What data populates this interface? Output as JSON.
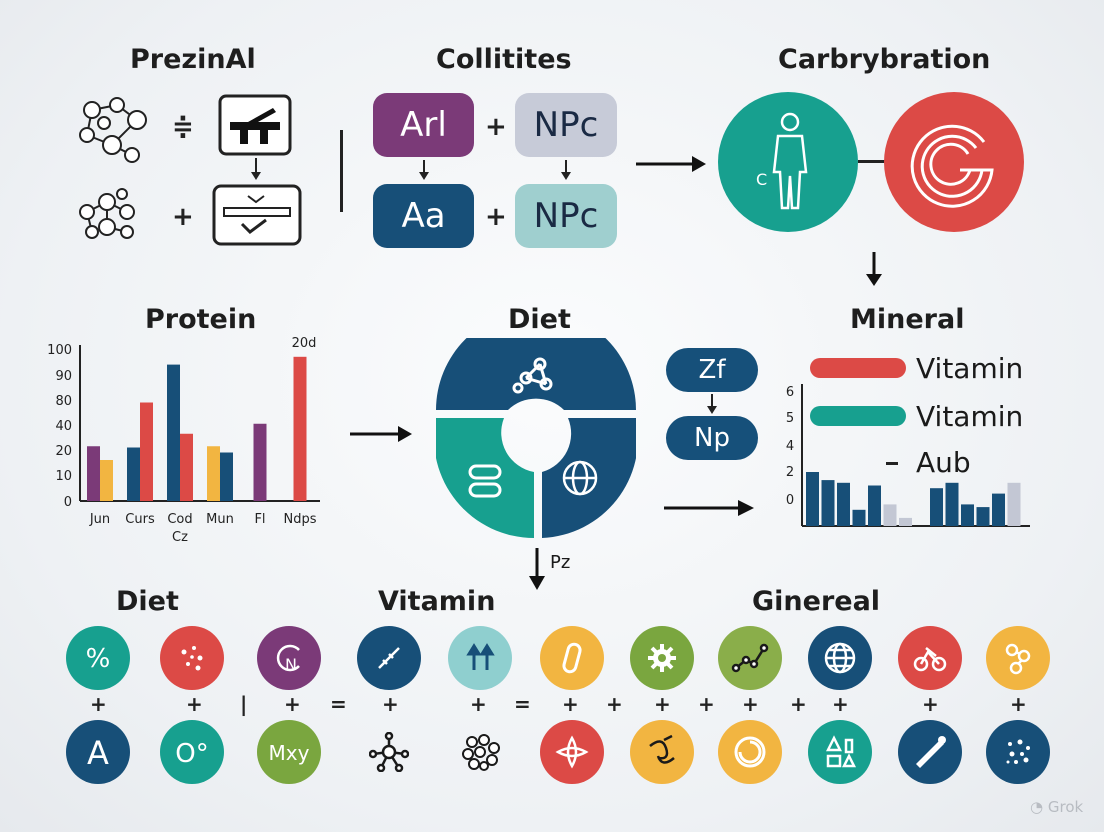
{
  "sections": {
    "prezinal": {
      "title": "PrezinAl",
      "op1": "≑",
      "op2": "+"
    },
    "collitites": {
      "title": "Collitites",
      "box1": "Arl",
      "box2": "NPc",
      "box3": "Aa",
      "box4": "NPc",
      "plus1": "+",
      "plus2": "+",
      "colors": {
        "box1": "#7b3a78",
        "box2": "#c7cbd8",
        "box3": "#174f78",
        "box4": "#9fcfcf"
      }
    },
    "carbrybration": {
      "title": "Carbrybration",
      "circle_label": "C",
      "colors": {
        "left": "#17a08f",
        "right": "#dc4a46"
      }
    },
    "protein": {
      "title": "Protein"
    },
    "diet_center": {
      "title": "Diet",
      "arrow_label": "Pz"
    },
    "mineral": {
      "title": "Mineral",
      "pill1": "Zf",
      "pill2": "Np",
      "legend": [
        {
          "label": "Vitamin",
          "color": "#dc4a46"
        },
        {
          "label": "Vitamin",
          "color": "#17a08f"
        },
        {
          "label": "Aub",
          "color": "#222222"
        }
      ],
      "y_ticks": [
        "6",
        "5",
        "4",
        "2",
        "0"
      ]
    },
    "bottom": {
      "diet": "Diet",
      "vitamin": "Vitamin",
      "general": "Ginereal"
    }
  },
  "chart_data": {
    "type": "bar",
    "title": "Protein",
    "categories": [
      "Jun",
      "Curs",
      "Cod",
      "Mun",
      "Fl",
      "Ndps"
    ],
    "category_sublabels": [
      "",
      "",
      "Cz",
      "",
      "",
      ""
    ],
    "annotation": "20d",
    "ylim": [
      0,
      100
    ],
    "y_ticks": [
      100,
      90,
      80,
      40,
      20,
      10,
      0
    ],
    "series": [
      {
        "color": "#7b3a78",
        "values": [
          23,
          0,
          0,
          0,
          42,
          0
        ]
      },
      {
        "color": "#f2b541",
        "values": [
          16,
          0,
          0,
          23,
          0,
          0
        ]
      },
      {
        "color": "#174f78",
        "values": [
          0,
          22,
          94,
          19,
          0,
          0
        ]
      },
      {
        "color": "#dc4a46",
        "values": [
          0,
          76,
          33,
          0,
          0,
          97
        ]
      }
    ]
  },
  "mini_chart": {
    "values": [
      2,
      1.7,
      1.6,
      0.6,
      1.5,
      0.8,
      0.3,
      0,
      1.4,
      1.6,
      0.8,
      0.7,
      1.2,
      1.6
    ],
    "colors": [
      "#174f78",
      "#174f78",
      "#174f78",
      "#174f78",
      "#174f78",
      "#c3c7d4",
      "#c3c7d4",
      "#174f78",
      "#174f78",
      "#174f78",
      "#174f78",
      "#174f78",
      "#174f78",
      "#c3c7d4"
    ]
  },
  "icons_row1": [
    {
      "name": "percent-icon",
      "color": "#17a08f",
      "text": "%"
    },
    {
      "name": "dots-icon",
      "color": "#dc4a46",
      "text": ""
    },
    {
      "name": "nc-icon",
      "color": "#7b3a78",
      "text": "N"
    },
    {
      "name": "syringe-icon",
      "color": "#174f78",
      "text": ""
    },
    {
      "name": "arrows-up-icon",
      "color": "#8fcfcf",
      "text": ""
    },
    {
      "name": "capsule-icon",
      "color": "#f2b541",
      "text": ""
    },
    {
      "name": "gear-icon",
      "color": "#7aa63f",
      "text": ""
    },
    {
      "name": "molecule-line-icon",
      "color": "#8aae4a",
      "text": ""
    },
    {
      "name": "globe-icon",
      "color": "#174f78",
      "text": ""
    },
    {
      "name": "bicycle-icon",
      "color": "#dc4a46",
      "text": ""
    },
    {
      "name": "molecule-icon",
      "color": "#f2b541",
      "text": ""
    }
  ],
  "icons_row2": [
    {
      "name": "letter-a-icon",
      "color": "#174f78",
      "text": "A"
    },
    {
      "name": "o-icon",
      "color": "#17a08f",
      "text": "O°"
    },
    {
      "name": "mxy-icon",
      "color": "#7aa63f",
      "text": "Mxy"
    },
    {
      "name": "hub-icon",
      "color": "none",
      "text": ""
    },
    {
      "name": "cluster-icon",
      "color": "none",
      "text": ""
    },
    {
      "name": "flower-icon",
      "color": "#dc4a46",
      "text": ""
    },
    {
      "name": "swirl-icon",
      "color": "#f2b541",
      "text": ""
    },
    {
      "name": "spiral-icon",
      "color": "#f2b541",
      "text": ""
    },
    {
      "name": "shapes-icon",
      "color": "#17a08f",
      "text": ""
    },
    {
      "name": "horn-icon",
      "color": "#174f78",
      "text": ""
    },
    {
      "name": "stars-icon",
      "color": "#174f78",
      "text": ""
    }
  ],
  "watermark": "Grok"
}
